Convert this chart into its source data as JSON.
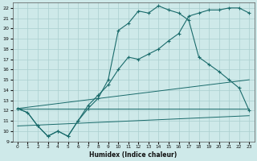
{
  "xlabel": "Humidex (Indice chaleur)",
  "xlim": [
    -0.5,
    23.5
  ],
  "ylim": [
    9,
    22.5
  ],
  "yticks": [
    9,
    10,
    11,
    12,
    13,
    14,
    15,
    16,
    17,
    18,
    19,
    20,
    21,
    22
  ],
  "xticks": [
    0,
    1,
    2,
    3,
    4,
    5,
    6,
    7,
    8,
    9,
    10,
    11,
    12,
    13,
    14,
    15,
    16,
    17,
    18,
    19,
    20,
    21,
    22,
    23
  ],
  "bg_color": "#cee9e9",
  "grid_color": "#aacfcf",
  "line_color": "#1a6b6b",
  "curve_main_x": [
    0,
    1,
    2,
    3,
    4,
    5,
    6,
    7,
    8,
    9,
    10,
    11,
    12,
    13,
    14,
    15,
    16,
    17,
    18,
    19,
    20,
    21,
    22,
    23
  ],
  "curve_main_y": [
    12.2,
    11.8,
    10.5,
    9.5,
    10.0,
    9.5,
    11.0,
    12.2,
    13.2,
    15.0,
    19.8,
    20.5,
    21.7,
    21.5,
    22.2,
    21.8,
    21.5,
    20.8,
    17.2,
    16.5,
    15.8,
    15.0,
    14.2,
    12.0
  ],
  "curve_slow_x": [
    0,
    1,
    2,
    3,
    4,
    5,
    6,
    7,
    8,
    9,
    10,
    11,
    12,
    13,
    14,
    15,
    16,
    17,
    18,
    19,
    20,
    21,
    22,
    23
  ],
  "curve_slow_y": [
    12.2,
    11.8,
    10.5,
    9.5,
    10.0,
    9.5,
    11.0,
    12.5,
    13.5,
    14.5,
    16.0,
    17.2,
    17.0,
    17.5,
    18.0,
    18.8,
    19.5,
    21.2,
    21.5,
    21.8,
    21.8,
    22.0,
    22.0,
    21.5
  ],
  "line1_x": [
    0,
    23
  ],
  "line1_y": [
    12.2,
    15.0
  ],
  "line2_x": [
    0,
    23
  ],
  "line2_y": [
    12.2,
    12.2
  ],
  "line3_x": [
    0,
    23
  ],
  "line3_y": [
    10.5,
    11.5
  ],
  "markers_main_x": [
    0,
    1,
    2,
    3,
    4,
    5,
    6,
    7,
    8,
    9,
    10,
    11,
    12,
    13,
    14,
    15,
    16,
    17,
    18,
    19,
    20,
    21,
    22,
    23
  ],
  "markers_main_y": [
    12.2,
    11.8,
    10.5,
    9.5,
    10.0,
    9.5,
    11.0,
    12.2,
    13.2,
    15.0,
    19.8,
    20.5,
    21.7,
    21.5,
    22.2,
    21.8,
    21.5,
    20.8,
    17.2,
    16.5,
    15.8,
    15.0,
    14.2,
    12.0
  ],
  "markers_slow_x": [
    0,
    2,
    3,
    4,
    5,
    6,
    7,
    8,
    9,
    10,
    11,
    12,
    13,
    14,
    15,
    16,
    17,
    18,
    19,
    20,
    21,
    22,
    23
  ],
  "markers_slow_y": [
    12.2,
    10.5,
    9.5,
    10.0,
    9.5,
    11.0,
    12.5,
    13.5,
    14.5,
    16.0,
    17.2,
    17.0,
    17.5,
    18.0,
    18.8,
    19.5,
    21.2,
    21.5,
    21.8,
    21.8,
    22.0,
    22.0,
    21.5
  ]
}
